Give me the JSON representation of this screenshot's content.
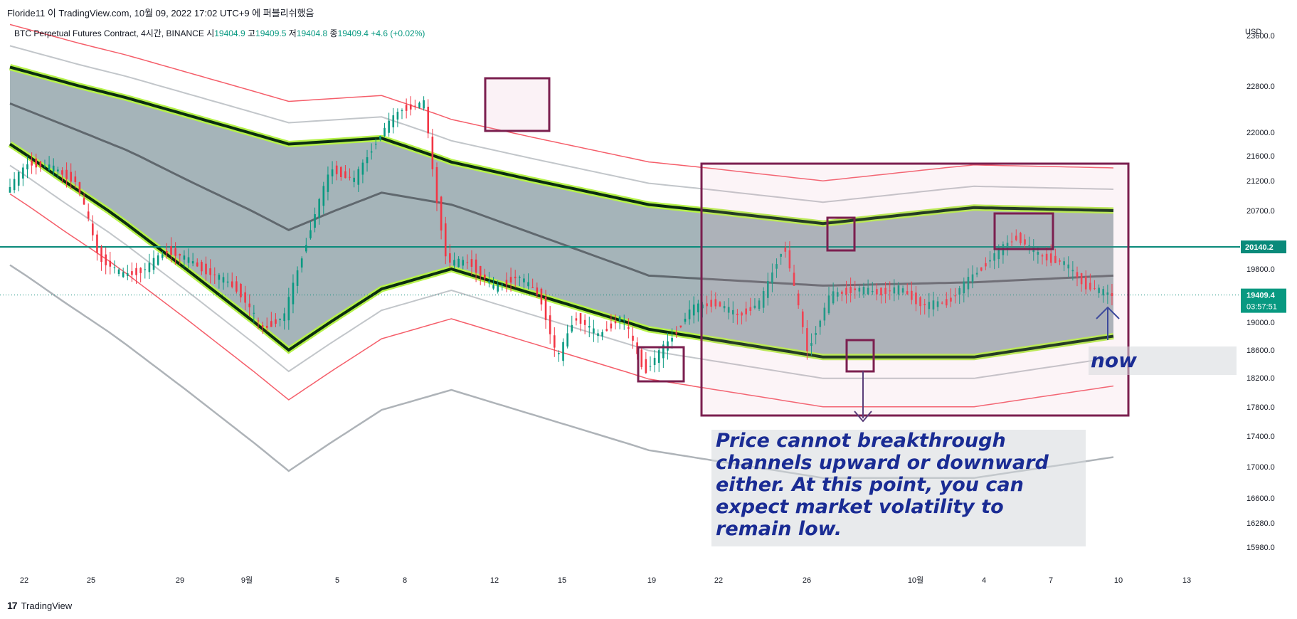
{
  "header": {
    "publisher_line": "Floride11 이 TradingView.com, 10월 09, 2022 17:02 UTC+9 에 퍼블리쉬했음"
  },
  "legend": {
    "symbol": "BTC Perpetual Futures Contract, 4시간, BINANCE",
    "open_label": "시",
    "open": "19404.9",
    "high_label": "고",
    "high": "19409.5",
    "low_label": "저",
    "low": "19404.8",
    "close_label": "종",
    "close": "19409.4",
    "change": "+4.6 (+0.02%)"
  },
  "annotation": {
    "text": "Price cannot breakthrough channels upward or downward either. At this point, you can expect market volatility to remain low.",
    "now_label": "now"
  },
  "footer": {
    "logo": "TradingView"
  },
  "colors": {
    "up": "#089981",
    "down": "#f23645",
    "channel_fill": "#8fa1a7",
    "highlight": "#7b1f4f",
    "level_line": "#0a8a7a",
    "annotation_text": "#1a2c94",
    "neon": "#b6f24a"
  },
  "chart_data": {
    "type": "line",
    "currency": "USD",
    "y_ticks": [
      23600,
      22800,
      22000,
      21600,
      21200,
      20700,
      19800,
      19000,
      18600,
      18200,
      17800,
      17400,
      17000,
      16600,
      16280,
      15980
    ],
    "y_tick_labels": [
      "23600.0",
      "22800.0",
      "22000.0",
      "21600.0",
      "21200.0",
      "20700.0",
      "19800.0",
      "19000.0",
      "18600.0",
      "18200.0",
      "17800.0",
      "17400.0",
      "17000.0",
      "16600.0",
      "16280.0",
      "15980.0"
    ],
    "x_labels": [
      "22",
      "25",
      "29",
      "9월",
      "5",
      "8",
      "12",
      "15",
      "19",
      "22",
      "26",
      "10월",
      "4",
      "7",
      "10",
      "13"
    ],
    "level_line": {
      "value": 20140.2,
      "label": "20140.2"
    },
    "last_price": {
      "value": 19409.4,
      "label": "19409.4",
      "countdown": "03:57:51"
    },
    "price_path": [
      {
        "t": 0,
        "v": 21000
      },
      {
        "t": 4,
        "v": 21500
      },
      {
        "t": 8,
        "v": 21400
      },
      {
        "t": 12,
        "v": 21200
      },
      {
        "t": 16,
        "v": 20000
      },
      {
        "t": 20,
        "v": 19700
      },
      {
        "t": 24,
        "v": 19800
      },
      {
        "t": 28,
        "v": 20100
      },
      {
        "t": 32,
        "v": 19900
      },
      {
        "t": 36,
        "v": 19700
      },
      {
        "t": 40,
        "v": 19500
      },
      {
        "t": 44,
        "v": 18900
      },
      {
        "t": 48,
        "v": 19100
      },
      {
        "t": 52,
        "v": 20300
      },
      {
        "t": 56,
        "v": 21400
      },
      {
        "t": 60,
        "v": 21200
      },
      {
        "t": 64,
        "v": 21900
      },
      {
        "t": 68,
        "v": 22400
      },
      {
        "t": 72,
        "v": 22500
      },
      {
        "t": 74,
        "v": 21000
      },
      {
        "t": 76,
        "v": 19900
      },
      {
        "t": 80,
        "v": 19900
      },
      {
        "t": 84,
        "v": 19500
      },
      {
        "t": 88,
        "v": 19700
      },
      {
        "t": 92,
        "v": 19400
      },
      {
        "t": 95,
        "v": 18450
      },
      {
        "t": 98,
        "v": 19100
      },
      {
        "t": 102,
        "v": 18800
      },
      {
        "t": 106,
        "v": 19100
      },
      {
        "t": 110,
        "v": 18300
      },
      {
        "t": 114,
        "v": 18700
      },
      {
        "t": 118,
        "v": 19200
      },
      {
        "t": 122,
        "v": 19300
      },
      {
        "t": 126,
        "v": 19100
      },
      {
        "t": 130,
        "v": 19300
      },
      {
        "t": 134,
        "v": 20200
      },
      {
        "t": 136,
        "v": 19400
      },
      {
        "t": 138,
        "v": 18600
      },
      {
        "t": 142,
        "v": 19400
      },
      {
        "t": 146,
        "v": 19500
      },
      {
        "t": 150,
        "v": 19450
      },
      {
        "t": 154,
        "v": 19500
      },
      {
        "t": 158,
        "v": 19250
      },
      {
        "t": 162,
        "v": 19300
      },
      {
        "t": 166,
        "v": 19650
      },
      {
        "t": 170,
        "v": 20000
      },
      {
        "t": 174,
        "v": 20300
      },
      {
        "t": 178,
        "v": 20000
      },
      {
        "t": 182,
        "v": 19900
      },
      {
        "t": 186,
        "v": 19550
      },
      {
        "t": 190,
        "v": 19409.4
      }
    ],
    "series": [
      {
        "points": [
          {
            "t": 0,
            "v": 23100
          },
          {
            "t": 20,
            "v": 22600
          },
          {
            "t": 48,
            "v": 21800
          },
          {
            "t": 64,
            "v": 21900
          },
          {
            "t": 76,
            "v": 21500
          },
          {
            "t": 110,
            "v": 20800
          },
          {
            "t": 140,
            "v": 20500
          },
          {
            "t": 166,
            "v": 20750
          },
          {
            "t": 190,
            "v": 20700
          }
        ]
      },
      {
        "points": [
          {
            "t": 0,
            "v": 21800
          },
          {
            "t": 20,
            "v": 20500
          },
          {
            "t": 48,
            "v": 18600
          },
          {
            "t": 64,
            "v": 19500
          },
          {
            "t": 76,
            "v": 19800
          },
          {
            "t": 110,
            "v": 18900
          },
          {
            "t": 140,
            "v": 18500
          },
          {
            "t": 166,
            "v": 18500
          },
          {
            "t": 190,
            "v": 18800
          }
        ]
      },
      {
        "points": [
          {
            "t": 0,
            "v": 22500
          },
          {
            "t": 20,
            "v": 21700
          },
          {
            "t": 48,
            "v": 20400
          },
          {
            "t": 64,
            "v": 21000
          },
          {
            "t": 76,
            "v": 20800
          },
          {
            "t": 110,
            "v": 19700
          },
          {
            "t": 140,
            "v": 19550
          },
          {
            "t": 166,
            "v": 19600
          },
          {
            "t": 190,
            "v": 19700
          }
        ]
      }
    ]
  }
}
